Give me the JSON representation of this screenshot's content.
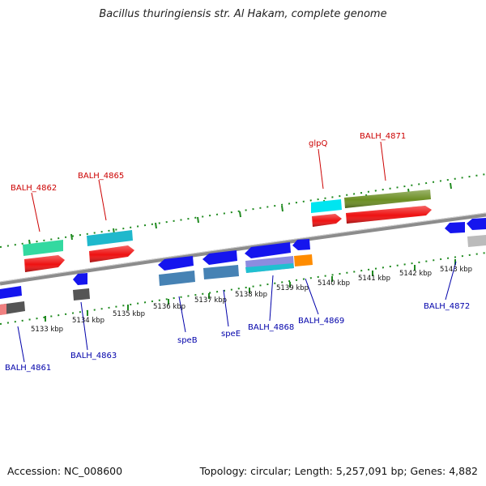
{
  "title": "Bacillus thuringiensis str. Al Hakam, complete genome",
  "footer": {
    "accession": "Accession: NC_008600",
    "summary": "Topology: circular; Length: 5,257,091 bp; Genes: 4,882"
  },
  "colors": {
    "backbone": "#8c8c8c",
    "tick": "#1f8a1f",
    "label_forward": "#cc0000",
    "label_reverse": "#0000aa"
  },
  "scale_labels": [
    "5133 kbp",
    "5134 kbp",
    "5135 kbp",
    "5136 kbp",
    "5137 kbp",
    "5138 kbp",
    "5139 kbp",
    "5140 kbp",
    "5141 kbp",
    "5142 kbp",
    "5143 kbp"
  ],
  "forward_gene_labels": [
    "BALH_4862",
    "BALH_4865",
    "glpQ",
    "BALH_4871"
  ],
  "reverse_gene_labels": [
    "BALH_4861",
    "BALH_4863",
    "speB",
    "speE",
    "BALH_4868",
    "BALH_4869",
    "BALH_4872"
  ]
}
